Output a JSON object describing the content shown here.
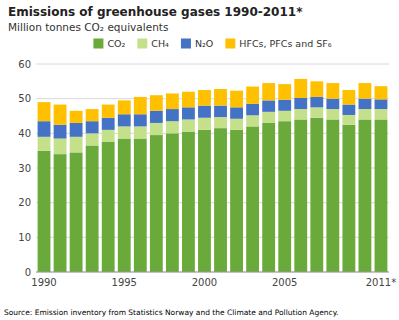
{
  "chart_data": {
    "type": "bar",
    "stacked": true,
    "title": "Emissions of greenhouse gases 1990-2011*",
    "subtitle": "Million tonnes CO₂ equivalents",
    "annotations": [
      "Source: Emission inventory from Statistics Norway and the Climate and Pollution Agency."
    ],
    "categories": [
      "1990",
      null,
      null,
      null,
      null,
      "1995",
      null,
      null,
      null,
      null,
      "2000",
      null,
      null,
      null,
      null,
      "2005",
      null,
      null,
      null,
      null,
      null,
      "2011*"
    ],
    "series": [
      {
        "name": "CO₂",
        "color": "#6aaa3a",
        "values": [
          35.0,
          34.0,
          34.5,
          36.5,
          37.5,
          38.5,
          38.5,
          39.5,
          40.0,
          40.5,
          41.0,
          41.5,
          41.0,
          42.0,
          43.0,
          43.5,
          44.0,
          44.5,
          44.0,
          42.5,
          44.0,
          44.0
        ]
      },
      {
        "name": "CH₄",
        "color": "#c5e08b",
        "values": [
          4.0,
          4.5,
          4.5,
          3.5,
          3.5,
          3.5,
          3.5,
          3.5,
          3.5,
          3.5,
          3.5,
          3.2,
          3.2,
          3.2,
          3.2,
          3.0,
          3.0,
          3.0,
          3.0,
          2.8,
          3.0,
          3.0
        ]
      },
      {
        "name": "N₂O",
        "color": "#4472c4",
        "values": [
          4.5,
          4.0,
          4.0,
          3.5,
          3.5,
          3.5,
          3.5,
          3.5,
          3.5,
          3.5,
          3.5,
          3.3,
          3.3,
          3.3,
          3.3,
          3.2,
          3.2,
          3.0,
          3.0,
          3.0,
          3.0,
          2.8
        ]
      },
      {
        "name": "HFCs, PFCs and SF₆",
        "color": "#ffc000",
        "values": [
          5.5,
          5.8,
          3.5,
          3.5,
          3.8,
          4.0,
          5.0,
          4.5,
          4.5,
          4.5,
          4.5,
          4.8,
          4.8,
          5.0,
          5.0,
          4.5,
          5.5,
          4.5,
          4.5,
          4.2,
          4.5,
          3.8
        ]
      }
    ],
    "ylim": [
      0,
      60
    ],
    "yticks": [
      0,
      10,
      20,
      30,
      40,
      50,
      60
    ],
    "grid": true,
    "legend": "top"
  }
}
